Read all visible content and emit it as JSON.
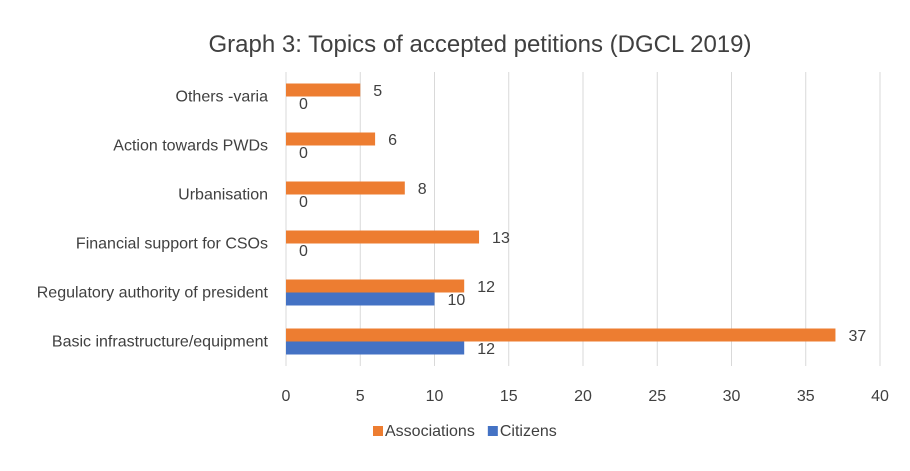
{
  "chart_data": {
    "type": "bar",
    "orientation": "horizontal",
    "title": "Graph 3: Topics of accepted petitions (DGCL 2019)",
    "categories": [
      "Basic infrastructure/equipment",
      "Regulatory authority of president",
      "Financial support for CSOs",
      "Urbanisation",
      "Action towards PWDs",
      "Others -varia"
    ],
    "series": [
      {
        "name": "Associations",
        "color": "#ED7D31",
        "values": [
          37,
          12,
          13,
          8,
          6,
          5
        ]
      },
      {
        "name": "Citizens",
        "color": "#4472C4",
        "values": [
          12,
          10,
          0,
          0,
          0,
          0
        ]
      }
    ],
    "xlim": [
      0,
      40
    ],
    "x_ticks": [
      0,
      5,
      10,
      15,
      20,
      25,
      30,
      35,
      40
    ],
    "grid": "vertical",
    "legend_position": "bottom",
    "data_labels": true,
    "xlabel": "",
    "ylabel": ""
  }
}
